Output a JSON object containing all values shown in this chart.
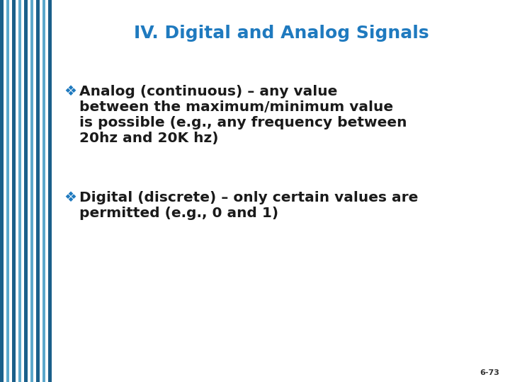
{
  "title": "IV. Digital and Analog Signals",
  "title_color": "#1F7ABF",
  "title_fontsize": 18,
  "bg_color": "#FFFFFF",
  "bullet1_prefix": "❖",
  "bullet1_line1": "Analog (continuous) – any value",
  "bullet1_line2": "between the maximum/minimum value",
  "bullet1_line3": "is possible (e.g., any frequency between",
  "bullet1_line4": "20hz and 20K hz)",
  "bullet2_prefix": "❖",
  "bullet2_line1": "Digital (discrete) – only certain values are",
  "bullet2_line2": "permitted (e.g., 0 and 1)",
  "bullet_color": "#1F7ABF",
  "text_color": "#1a1a1a",
  "text_fontsize": 14.5,
  "page_number": "6-73",
  "page_num_color": "#333333",
  "page_num_fontsize": 8,
  "stripe_configs": [
    [
      5,
      "#1A5F8A"
    ],
    [
      4,
      "#FFFFFF"
    ],
    [
      4,
      "#5BA8CC"
    ],
    [
      4,
      "#FFFFFF"
    ],
    [
      5,
      "#1A5F8A"
    ],
    [
      4,
      "#FFFFFF"
    ],
    [
      4,
      "#5BA8CC"
    ],
    [
      4,
      "#FFFFFF"
    ],
    [
      5,
      "#1A5F8A"
    ],
    [
      4,
      "#FFFFFF"
    ],
    [
      4,
      "#5BA8CC"
    ],
    [
      4,
      "#FFFFFF"
    ],
    [
      5,
      "#1A5F8A"
    ],
    [
      4,
      "#FFFFFF"
    ],
    [
      4,
      "#5BA8CC"
    ],
    [
      4,
      "#FFFFFF"
    ],
    [
      5,
      "#1A5F8A"
    ]
  ]
}
